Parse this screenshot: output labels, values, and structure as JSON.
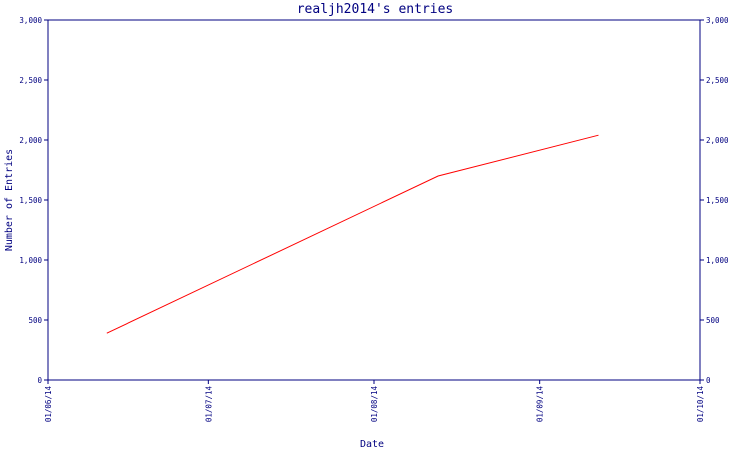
{
  "chart_data": {
    "type": "line",
    "title": "realjh2014's entries",
    "xlabel": "Date",
    "ylabel": "Number of Entries",
    "x_ticks": [
      "01/06/14",
      "01/07/14",
      "01/08/14",
      "01/09/14",
      "01/10/14"
    ],
    "y_ticks": [
      "0",
      "500",
      "1,000",
      "1,500",
      "2,000",
      "2,500",
      "3,000"
    ],
    "ylim": [
      0,
      3000
    ],
    "xlim": [
      "2014-06-01",
      "2014-10-01"
    ],
    "y_axis_sides": [
      "left",
      "right"
    ],
    "grid": false,
    "series": [
      {
        "color": "#ff0000",
        "x": [
          "2014-06-12",
          "2014-08-13",
          "2014-09-12"
        ],
        "values": [
          390,
          1700,
          2040
        ]
      }
    ]
  },
  "colors": {
    "axis": "#000080",
    "line": "#ff0000",
    "background": "#ffffff"
  }
}
